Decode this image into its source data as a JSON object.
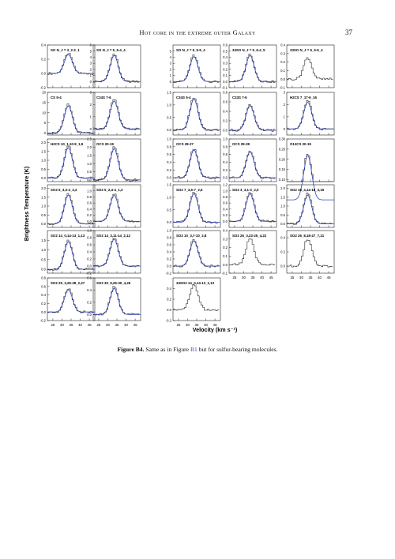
{
  "header": {
    "running_title": "Hot core in the extreme outer Galaxy",
    "page_number": "37"
  },
  "figure": {
    "ylabel": "Brightness Temperature (K)",
    "xlabel": "Velocity (km s⁻¹)",
    "x_tick_labels": [
      "25",
      "30",
      "35",
      "40",
      "45"
    ],
    "line_color": "#222222",
    "fit_color": "#3344bb"
  },
  "caption": {
    "label": "Figure B4.",
    "text_before": "Same as in Figure ",
    "ref": "B1",
    "text_after": " but for sulfur-bearing molecules."
  },
  "chart_data": [
    {
      "type": "line",
      "title": "SO  N_J = 3_2-2_1",
      "xlim": [
        22,
        48
      ],
      "ylim": [
        -0.2,
        0.4
      ],
      "y_ticks": [
        "-0.2",
        "0.0",
        "0.2",
        "0.4"
      ],
      "peak": 0.28,
      "fit": true
    },
    {
      "type": "line",
      "title": "SO  N_J = 5_5-4_4",
      "xlim": [
        22,
        48
      ],
      "ylim": [
        -1,
        6
      ],
      "y_ticks": [
        "0",
        "1",
        "2",
        "3",
        "4",
        "5",
        "6"
      ],
      "peak": 4.5,
      "fit": true
    },
    {
      "type": "line",
      "title": "SO  N_J = 6_5-5_4",
      "xlim": [
        22,
        48
      ],
      "ylim": [
        -1,
        6
      ],
      "y_ticks": [
        "0",
        "1",
        "2",
        "3",
        "4",
        "5"
      ],
      "peak": 4.3,
      "fit": true
    },
    {
      "type": "line",
      "title": "34SO  N_J = 5_6-4_5",
      "xlim": [
        22,
        48
      ],
      "ylim": [
        -0.1,
        0.6
      ],
      "y_ticks": [
        "-0.1",
        "0.0",
        "0.1",
        "0.2",
        "0.3",
        "0.4",
        "0.5",
        "0.6"
      ],
      "peak": 0.45,
      "fit": true
    },
    {
      "type": "line",
      "title": "33SO  N_J = 6_5-5_4",
      "xlim": [
        22,
        48
      ],
      "ylim": [
        -0.1,
        0.4
      ],
      "y_ticks": [
        "-0.1",
        "0.0",
        "0.1",
        "0.2",
        "0.3",
        "0.4"
      ],
      "peak": 0.25,
      "fit": false
    },
    {
      "type": "line",
      "title": "CS  5-4",
      "xlim": [
        22,
        48
      ],
      "ylim": [
        -1,
        20
      ],
      "y_ticks": [
        "0",
        "5",
        "10",
        "15",
        "20"
      ],
      "peak": 14,
      "fit": true
    },
    {
      "type": "line",
      "title": "C34S  7-6",
      "xlim": [
        22,
        48
      ],
      "ylim": [
        -0.5,
        3
      ],
      "y_ticks": [
        "0",
        "1",
        "2",
        "3"
      ],
      "peak": 2.4,
      "fit": true
    },
    {
      "type": "line",
      "title": "C34S  5-4",
      "xlim": [
        22,
        48
      ],
      "ylim": [
        -0.2,
        1.5
      ],
      "y_ticks": [
        "0.0",
        "0.5",
        "1.0",
        "1.5"
      ],
      "peak": 1.3,
      "fit": true
    },
    {
      "type": "line",
      "title": "C33S  7-6",
      "xlim": [
        22,
        48
      ],
      "ylim": [
        -0.1,
        0.8
      ],
      "y_ticks": [
        "0.0",
        "0.2",
        "0.4",
        "0.6",
        "0.8"
      ],
      "peak": 0.55,
      "fit": true
    },
    {
      "type": "line",
      "title": "H2CS  7_17-6_16",
      "xlim": [
        22,
        48
      ],
      "ylim": [
        -0.5,
        3
      ],
      "y_ticks": [
        "0",
        "1",
        "2",
        "3"
      ],
      "peak": 2.3,
      "fit": true
    },
    {
      "type": "line",
      "title": "H2CS  10_1,10-9_1,9",
      "xlim": [
        22,
        48
      ],
      "ylim": [
        -0.2,
        2.2
      ],
      "y_ticks": [
        "0.0",
        "0.5",
        "1.0",
        "1.5",
        "2.0"
      ],
      "peak": 1.8,
      "fit": true
    },
    {
      "type": "line",
      "title": "OCS  20-19",
      "xlim": [
        22,
        48
      ],
      "ylim": [
        -0.1,
        2.5
      ],
      "y_ticks": [
        "0.0",
        "0.5",
        "1.0",
        "1.5",
        "2.0",
        "2.5"
      ],
      "peak": 2.0,
      "fit": true
    },
    {
      "type": "line",
      "title": "OCS  28-27",
      "xlim": [
        22,
        48
      ],
      "ylim": [
        -0.1,
        1.0
      ],
      "y_ticks": [
        "0.0",
        "0.2",
        "0.4",
        "0.6",
        "0.8",
        "1.0"
      ],
      "peak": 0.75,
      "fit": true
    },
    {
      "type": "line",
      "title": "OCS  29-28",
      "xlim": [
        22,
        48
      ],
      "ylim": [
        -0.1,
        1.0
      ],
      "y_ticks": [
        "0.0",
        "0.2",
        "0.4",
        "0.6",
        "0.8",
        "1.0"
      ],
      "peak": 0.7,
      "fit": true
    },
    {
      "type": "line",
      "title": "O13CS  20-19",
      "xlim": [
        22,
        48
      ],
      "ylim": [
        0.09,
        0.3
      ],
      "y_ticks": [
        "0.10",
        "0.15",
        "0.20",
        "0.25",
        "0.30"
      ],
      "peak": 0.23,
      "fit": true
    },
    {
      "type": "line",
      "title": "SO2  5_3,3-4_2,2",
      "xlim": [
        22,
        48
      ],
      "ylim": [
        -0.2,
        2.2
      ],
      "y_ticks": [
        "0.0",
        "0.5",
        "1.0",
        "1.5",
        "2.0"
      ],
      "peak": 1.7,
      "fit": true
    },
    {
      "type": "line",
      "title": "SO2  5_2,4-4_1,3",
      "xlim": [
        22,
        48
      ],
      "ylim": [
        -0.2,
        1.2
      ],
      "y_ticks": [
        "0.0",
        "0.2",
        "0.4",
        "0.6",
        "0.8",
        "1.0"
      ],
      "peak": 0.9,
      "fit": true
    },
    {
      "type": "line",
      "title": "SO2  7_3,5-7_2,6",
      "xlim": [
        22,
        48
      ],
      "ylim": [
        -0.2,
        1.5
      ],
      "y_ticks": [
        "0.0",
        "0.5",
        "1.0",
        "1.5"
      ],
      "peak": 1.2,
      "fit": true
    },
    {
      "type": "line",
      "title": "SO2  3_3,1-2_2,0",
      "xlim": [
        22,
        48
      ],
      "ylim": [
        -0.2,
        1.2
      ],
      "y_ticks": [
        "0.0",
        "0.2",
        "0.4",
        "0.6",
        "0.8",
        "1.0",
        "1.2"
      ],
      "peak": 0.95,
      "fit": true
    },
    {
      "type": "line",
      "title": "SO2  18_4,14-18_3,15",
      "xlim": [
        22,
        48
      ],
      "ylim": [
        -0.2,
        2.2
      ],
      "y_ticks": [
        "0.0",
        "0.5",
        "1.0",
        "1.5",
        "2.0"
      ],
      "peak": 1.7,
      "fit": true
    },
    {
      "type": "line",
      "title": "SO2  14_0,14-13_1,13",
      "xlim": [
        22,
        48
      ],
      "ylim": [
        -0.2,
        2.0
      ],
      "y_ticks": [
        "0.0",
        "0.5",
        "1.0",
        "1.5"
      ],
      "peak": 1.5,
      "fit": true
    },
    {
      "type": "line",
      "title": "SO2  14_3,11-14_2,12",
      "xlim": [
        22,
        48
      ],
      "ylim": [
        -0.2,
        1.0
      ],
      "y_ticks": [
        "-0.2",
        "0.0",
        "0.2",
        "0.4",
        "0.6",
        "0.8",
        "1.0"
      ],
      "peak": 0.8,
      "fit": true
    },
    {
      "type": "line",
      "title": "SO2  10_3,7-10_2,8",
      "xlim": [
        22,
        48
      ],
      "ylim": [
        -0.2,
        1.0
      ],
      "y_ticks": [
        "-0.2",
        "0.0",
        "0.2",
        "0.4",
        "0.6",
        "0.8",
        "1.0"
      ],
      "peak": 0.75,
      "fit": true
    },
    {
      "type": "line",
      "title": "SO2  26_3,23-25_4,22",
      "xlim": [
        22,
        48
      ],
      "ylim": [
        -0.1,
        0.4
      ],
      "y_ticks": [
        "-0.1",
        "0.0",
        "0.1",
        "0.2",
        "0.3",
        "0.4"
      ],
      "peak": 0.3,
      "fit": false
    },
    {
      "type": "line",
      "title": "SO2  26_8,18-27_7,21",
      "xlim": [
        22,
        48
      ],
      "ylim": [
        -0.1,
        0.5
      ],
      "y_ticks": [
        "0.0",
        "0.2",
        "0.4"
      ],
      "peak": 0.38,
      "fit": false
    },
    {
      "type": "line",
      "title": "SO2  29_3,26-28_2,27",
      "xlim": [
        22,
        48
      ],
      "ylim": [
        -0.2,
        0.8
      ],
      "y_ticks": [
        "-0.2",
        "0.0",
        "0.2",
        "0.4",
        "0.6",
        "0.8"
      ],
      "peak": 0.55,
      "fit": true
    },
    {
      "type": "line",
      "title": "SO2  30_5,25-30_4,26",
      "xlim": [
        22,
        48
      ],
      "ylim": [
        -0.1,
        0.6
      ],
      "y_ticks": [
        "0.0",
        "0.2",
        "0.4",
        "0.6"
      ],
      "peak": 0.45,
      "fit": true
    },
    {
      "type": "line",
      "title": "34SO2  14_0,14-13_1,13",
      "xlim": [
        22,
        48
      ],
      "ylim": [
        -0.2,
        0.6
      ],
      "y_ticks": [
        "-0.2",
        "0.0",
        "0.2",
        "0.4"
      ],
      "peak": 0.48,
      "fit": false
    }
  ]
}
